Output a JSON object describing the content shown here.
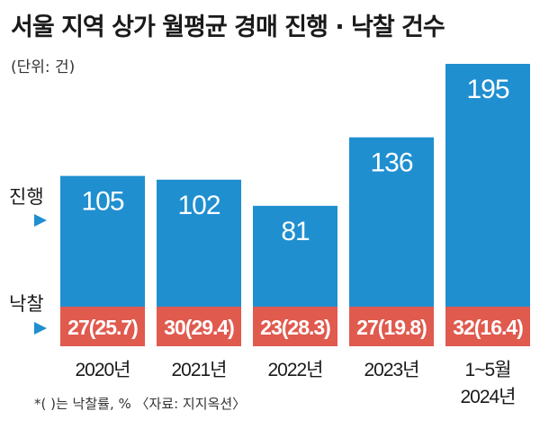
{
  "title": "서울 지역 상가 월평균 경매 진행 · 낙찰 건수",
  "unit": "(단위: 건)",
  "footnote": "*(  )는 낙찰률, %  〈자료: 지지옥션〉",
  "colors": {
    "progress": "#1f8fd0",
    "winning": "#e05a4e",
    "arrow": "#1f8fd0"
  },
  "chart_data": {
    "type": "bar",
    "title": "서울 지역 상가 월평균 경매 진행 · 낙찰 건수",
    "unit": "(단위: 건)",
    "categories": [
      [
        "2020년"
      ],
      [
        "2021년"
      ],
      [
        "2022년"
      ],
      [
        "2023년"
      ],
      [
        "1~5월",
        "2024년"
      ]
    ],
    "series": [
      {
        "name": "진행",
        "values": [
          105,
          102,
          81,
          136,
          195
        ]
      },
      {
        "name": "낙찰",
        "values": [
          27,
          30,
          23,
          27,
          32
        ]
      }
    ],
    "winning_rate_pct": [
      25.7,
      29.4,
      28.3,
      19.8,
      16.4
    ],
    "winning_labels": [
      "27(25.7)",
      "30(29.4)",
      "23(28.3)",
      "27(19.8)",
      "32(16.4)"
    ]
  }
}
